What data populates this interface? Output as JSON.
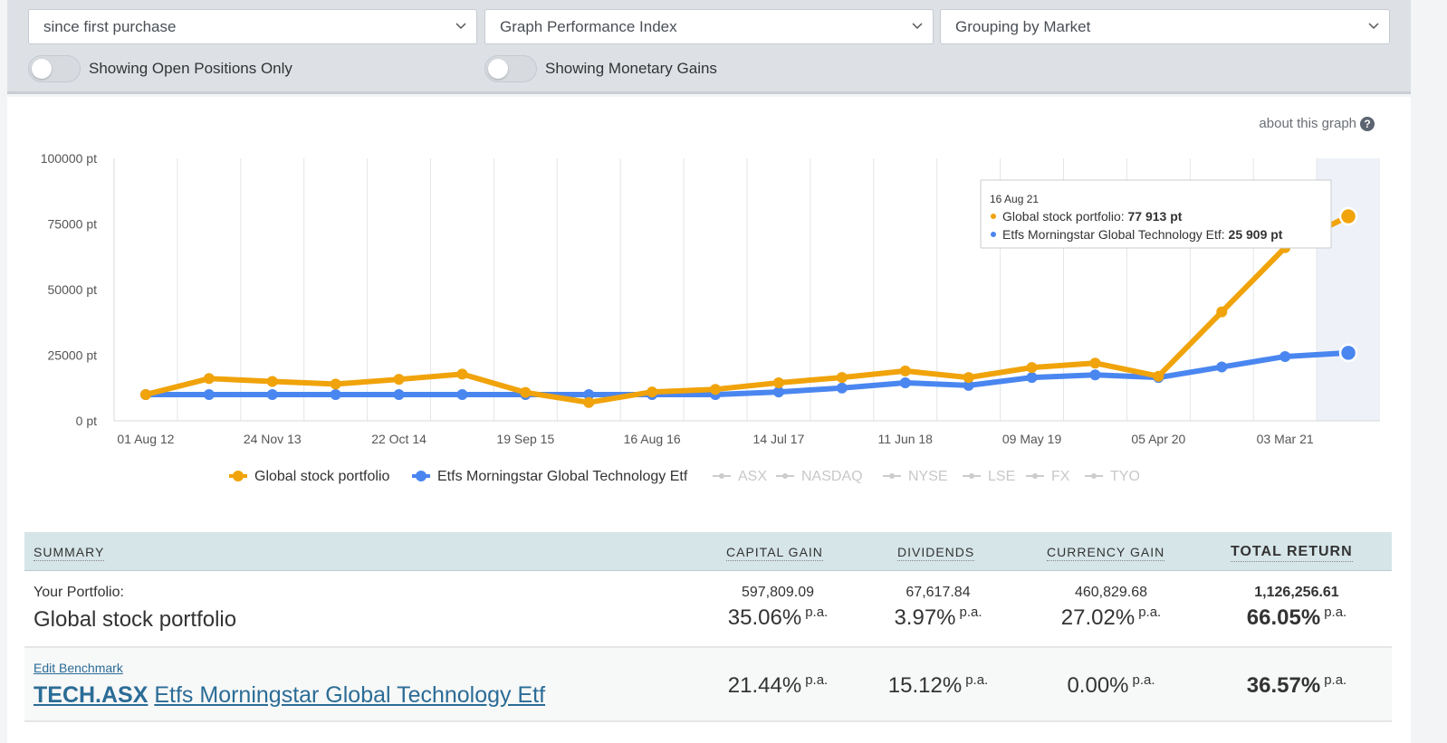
{
  "filters": {
    "period": "since first purchase",
    "graph_type": "Graph Performance Index",
    "grouping": "Grouping by Market",
    "toggle_positions": "Showing Open Positions Only",
    "toggle_gains": "Showing Monetary Gains"
  },
  "about_graph": "about this graph",
  "help_glyph": "?",
  "chart_data": {
    "type": "line",
    "y_tick_labels": [
      "100000 pt",
      "75000 pt",
      "50000 pt",
      "25000 pt",
      "0 pt"
    ],
    "y_ticks": [
      100000,
      75000,
      50000,
      25000,
      0
    ],
    "ylim": [
      0,
      100000
    ],
    "x_tick_labels": [
      "01 Aug 12",
      "24 Nov 13",
      "22 Oct 14",
      "19 Sep 15",
      "16 Aug 16",
      "14 Jul 17",
      "11 Jun 18",
      "09 May 19",
      "05 Apr 20",
      "03 Mar 21"
    ],
    "x_tick_positions": [
      0,
      2,
      4,
      6,
      8,
      10,
      12,
      14,
      16,
      18
    ],
    "n_points": 20,
    "grid": true,
    "highlight_index": 19,
    "series": [
      {
        "name": "Global stock portfolio",
        "color": "#f0a30a",
        "values": [
          10000,
          16100,
          15000,
          14000,
          15800,
          17800,
          10800,
          7000,
          11000,
          12000,
          14500,
          16500,
          19000,
          16500,
          20300,
          22000,
          17000,
          41500,
          66000,
          77913
        ]
      },
      {
        "name": "Etfs Morningstar Global Technology Etf",
        "color": "#4a86f0",
        "values": [
          10000,
          10000,
          10000,
          10000,
          10000,
          10000,
          10000,
          10000,
          10000,
          10000,
          11000,
          12500,
          14500,
          13500,
          16500,
          17500,
          16500,
          20500,
          24500,
          25909
        ]
      }
    ],
    "legend_other": [
      "ASX",
      "NASDAQ",
      "NYSE",
      "LSE",
      "FX",
      "TYO"
    ],
    "tooltip": {
      "date": "16 Aug 21",
      "line1_label": "Global stock portfolio:",
      "line1_value": "77 913 pt",
      "line2_label": "Etfs Morningstar Global Technology Etf:",
      "line2_value": "25 909 pt"
    }
  },
  "summary": {
    "headers": {
      "summary": "SUMMARY",
      "capital_gain": "CAPITAL GAIN",
      "dividends": "DIVIDENDS",
      "currency_gain": "CURRENCY GAIN",
      "total_return": "TOTAL RETURN"
    },
    "pa": "p.a.",
    "portfolio": {
      "label": "Your Portfolio:",
      "name": "Global stock portfolio",
      "capital_gain_amount": "597,809.09",
      "capital_gain_pct": "35.06%",
      "dividends_amount": "67,617.84",
      "dividends_pct": "3.97%",
      "currency_gain_amount": "460,829.68",
      "currency_gain_pct": "27.02%",
      "total_return_amount": "1,126,256.61",
      "total_return_pct": "66.05%"
    },
    "benchmark": {
      "edit_label": "Edit Benchmark",
      "code": "TECH.ASX",
      "name": "Etfs Morningstar Global Technology Etf",
      "capital_gain_pct": "21.44%",
      "dividends_pct": "15.12%",
      "currency_gain_pct": "0.00%",
      "total_return_pct": "36.57%"
    }
  }
}
